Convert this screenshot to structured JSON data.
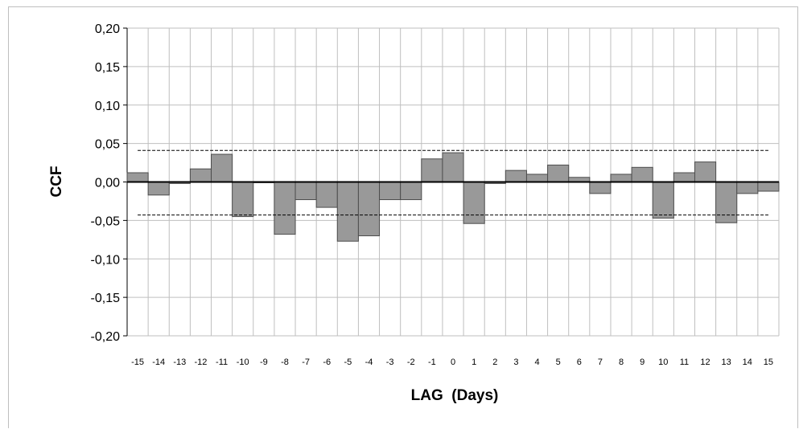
{
  "chart_data": {
    "type": "bar",
    "title": "",
    "xlabel": "LAG  (Days)",
    "ylabel": "CCF",
    "ylim": [
      -0.2,
      0.2
    ],
    "yticks": [
      "0,20",
      "0,15",
      "0,10",
      "0,05",
      "0,00",
      "-0,05",
      "-0,10",
      "-0,15",
      "-0,20"
    ],
    "ytick_values": [
      0.2,
      0.15,
      0.1,
      0.05,
      0.0,
      -0.05,
      -0.1,
      -0.15,
      -0.2
    ],
    "categories": [
      "-15",
      "-14",
      "-13",
      "-12",
      "-11",
      "-10",
      "-9",
      "-8",
      "-7",
      "-6",
      "-5",
      "-4",
      "-3",
      "-2",
      "-1",
      "0",
      "1",
      "2",
      "3",
      "4",
      "5",
      "6",
      "7",
      "8",
      "9",
      "10",
      "11",
      "12",
      "13",
      "14",
      "15"
    ],
    "values": [
      0.012,
      -0.017,
      -0.002,
      0.017,
      0.036,
      -0.045,
      -0.001,
      -0.068,
      -0.023,
      -0.033,
      -0.077,
      -0.07,
      -0.023,
      -0.023,
      0.03,
      0.038,
      -0.054,
      -0.002,
      0.015,
      0.01,
      0.022,
      0.006,
      -0.015,
      0.01,
      0.019,
      -0.047,
      0.012,
      0.026,
      -0.053,
      -0.015,
      -0.012
    ],
    "confidence_bounds": [
      0.041,
      -0.043
    ],
    "grid": true,
    "legend": "none",
    "colors": {
      "bar": "#999999",
      "bar_edge": "#4d4d4d",
      "grid": "#bfbfbf",
      "zero_line": "#000000",
      "bounds": "#000000"
    }
  }
}
